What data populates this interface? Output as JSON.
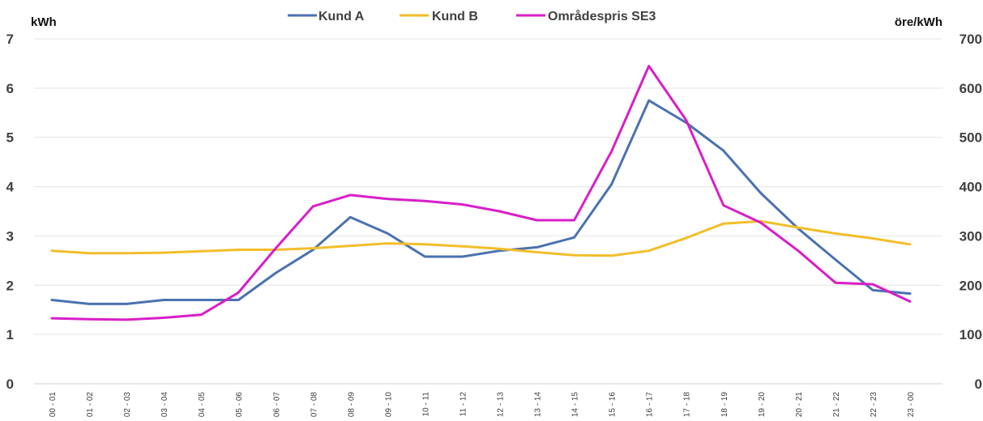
{
  "chart_data": {
    "type": "line",
    "title": "",
    "categories": [
      "00 - 01",
      "01 - 02",
      "02 - 03",
      "03 - 04",
      "04 - 05",
      "05 - 06",
      "06 - 07",
      "07 - 08",
      "08 - 09",
      "09 - 10",
      "10 - 11",
      "11 - 12",
      "12 - 13",
      "13 - 14",
      "14 - 15",
      "15 - 16",
      "16 - 17",
      "17 - 18",
      "18 - 19",
      "19 - 20",
      "20 - 21",
      "21 - 22",
      "22 - 23",
      "23 - 00"
    ],
    "ylabel_left": "kWh",
    "ylabel_right": "öre/kWh",
    "ylim_left": [
      0,
      7
    ],
    "ylim_right": [
      0,
      700
    ],
    "yticks_left": [
      "0",
      "1",
      "2",
      "3",
      "4",
      "5",
      "6",
      "7"
    ],
    "yticks_right": [
      "0",
      "100",
      "200",
      "300",
      "400",
      "500",
      "600",
      "700"
    ],
    "grid": true,
    "legend_position": "top",
    "series": [
      {
        "name": "Kund A",
        "axis": "left",
        "color": "#4a72b0",
        "values": [
          1.7,
          1.62,
          1.62,
          1.7,
          1.7,
          1.7,
          2.25,
          2.72,
          3.38,
          3.05,
          2.58,
          2.58,
          2.7,
          2.77,
          2.97,
          4.05,
          5.75,
          5.3,
          4.73,
          3.87,
          3.15,
          2.52,
          1.9,
          1.83
        ]
      },
      {
        "name": "Kund B",
        "axis": "left",
        "color": "#f2be2a",
        "values": [
          2.7,
          2.65,
          2.65,
          2.66,
          2.69,
          2.72,
          2.72,
          2.75,
          2.8,
          2.85,
          2.83,
          2.79,
          2.74,
          2.67,
          2.61,
          2.6,
          2.7,
          2.96,
          3.25,
          3.3,
          3.17,
          3.05,
          2.95,
          2.83
        ]
      },
      {
        "name": "Områdespris SE3",
        "axis": "right",
        "color": "#d81ec8",
        "values": [
          133,
          131,
          130,
          134,
          140,
          185,
          275,
          360,
          383,
          375,
          371,
          364,
          350,
          332,
          332,
          472,
          645,
          535,
          362,
          327,
          270,
          205,
          202,
          167
        ]
      }
    ]
  }
}
